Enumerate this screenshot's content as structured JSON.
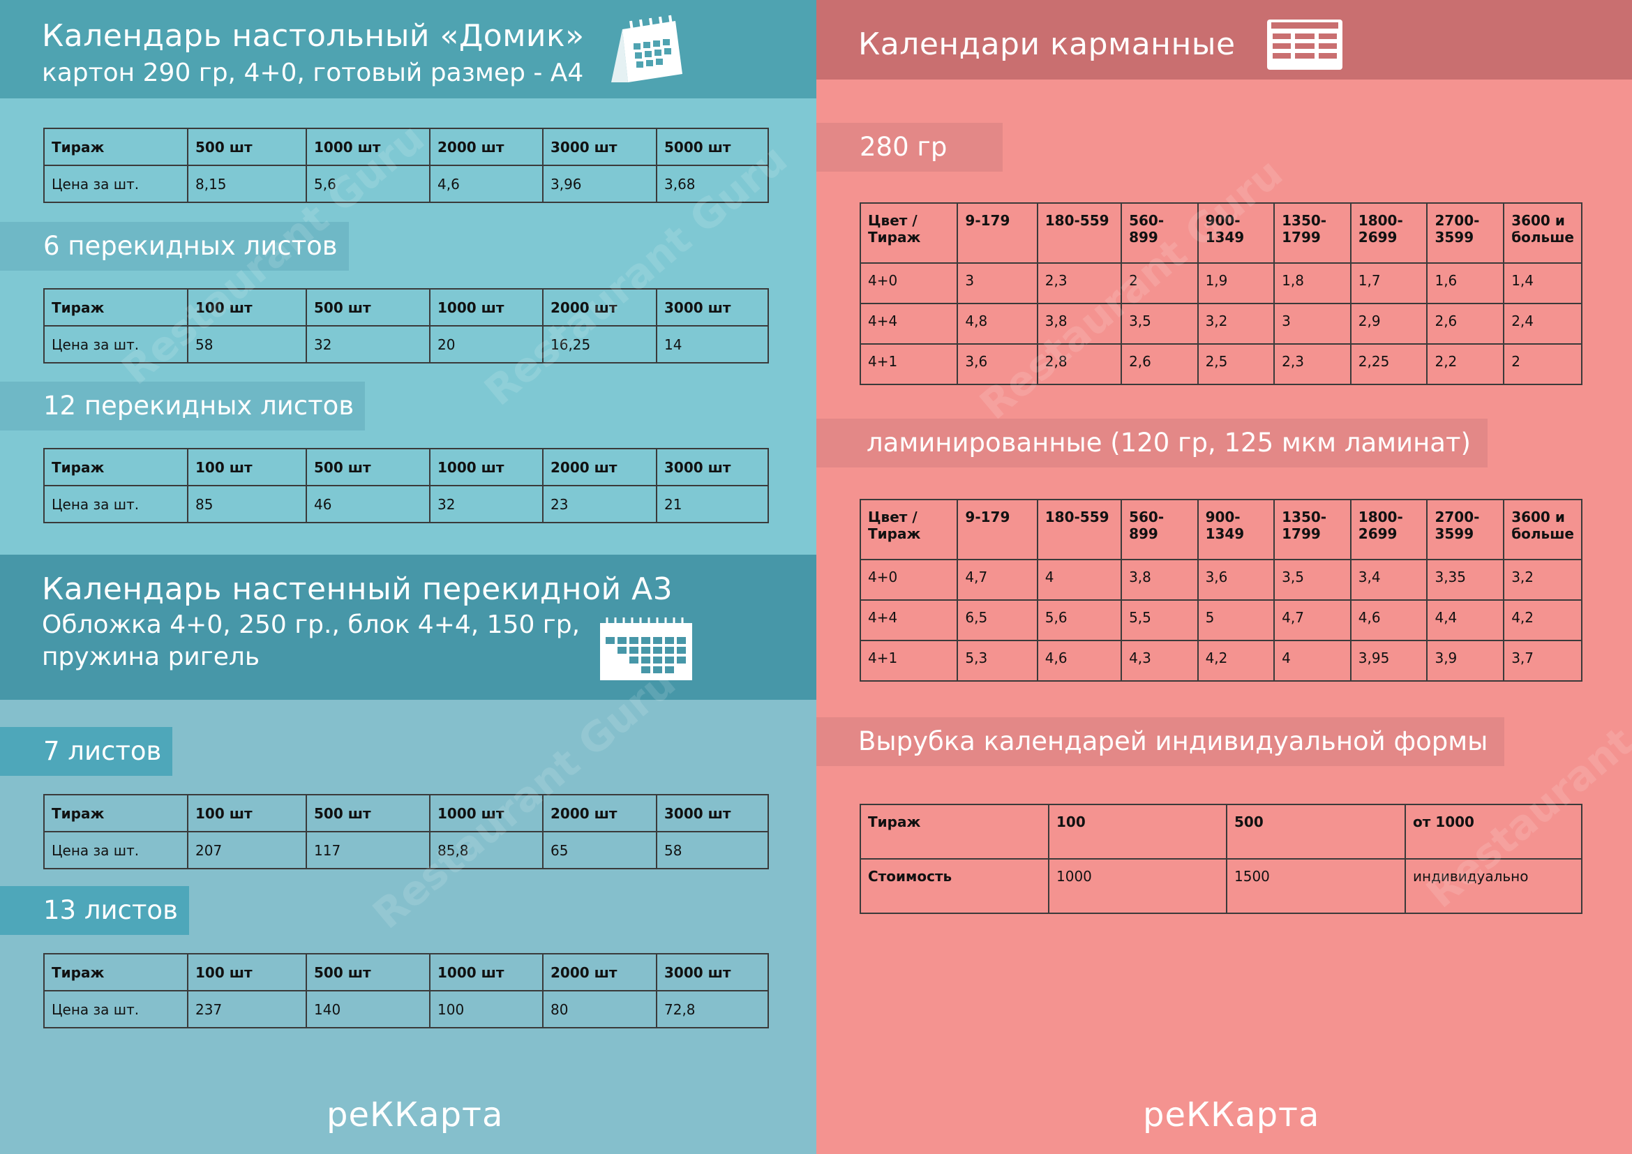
{
  "left": {
    "header": {
      "title": "Календарь настольный «Домик»",
      "subtitle": "картон 290 гр, 4+0, готовый размер - А4",
      "icon": "desk-calendar-icon"
    },
    "table_a": {
      "head": [
        "Тираж",
        "500 шт",
        "1000 шт",
        "2000 шт",
        "3000 шт",
        "5000 шт"
      ],
      "row": [
        "Цена за шт.",
        "8,15",
        "5,6",
        "4,6",
        "3,96",
        "3,68"
      ]
    },
    "sec_6": {
      "label": "6 перекидных листов",
      "head": [
        "Тираж",
        "100 шт",
        "500 шт",
        "1000 шт",
        "2000 шт",
        "3000 шт"
      ],
      "row": [
        "Цена за шт.",
        "58",
        "32",
        "20",
        "16,25",
        "14"
      ]
    },
    "sec_12": {
      "label": "12 перекидных листов",
      "head": [
        "Тираж",
        "100 шт",
        "500 шт",
        "1000 шт",
        "2000 шт",
        "3000 шт"
      ],
      "row": [
        "Цена за шт.",
        "85",
        "46",
        "32",
        "23",
        "21"
      ]
    },
    "wall": {
      "title": "Календарь настенный перекидной А3",
      "line1": "Обложка 4+0, 250 гр., блок 4+4, 150 гр,",
      "line2": "пружина ригель",
      "icon": "wall-calendar-icon"
    },
    "sec_7": {
      "label": "7 листов",
      "head": [
        "Тираж",
        "100 шт",
        "500 шт",
        "1000 шт",
        "2000 шт",
        "3000 шт"
      ],
      "row": [
        "Цена за шт.",
        "207",
        "117",
        "85,8",
        "65",
        "58"
      ]
    },
    "sec_13": {
      "label": "13 листов",
      "head": [
        "Тираж",
        "100 шт",
        "500 шт",
        "1000 шт",
        "2000 шт",
        "3000 шт"
      ],
      "row": [
        "Цена за шт.",
        "237",
        "140",
        "100",
        "80",
        "72,8"
      ]
    },
    "footer": "реККарта"
  },
  "right": {
    "header": {
      "title": "Календари карманные",
      "icon": "table-icon"
    },
    "sec_280": {
      "label": "280 гр",
      "head": [
        "Цвет / Тираж",
        "9-179",
        "180-559",
        "560-899",
        "900-1349",
        "1350-1799",
        "1800-2699",
        "2700-3599",
        "3600 и больше"
      ],
      "rows": [
        [
          "4+0",
          "3",
          "2,3",
          "2",
          "1,9",
          "1,8",
          "1,7",
          "1,6",
          "1,4"
        ],
        [
          "4+4",
          "4,8",
          "3,8",
          "3,5",
          "3,2",
          "3",
          "2,9",
          "2,6",
          "2,4"
        ],
        [
          "4+1",
          "3,6",
          "2,8",
          "2,6",
          "2,5",
          "2,3",
          "2,25",
          "2,2",
          "2"
        ]
      ]
    },
    "sec_lam": {
      "label": "ламинированные (120 гр, 125 мкм ламинат)",
      "head": [
        "Цвет / Тираж",
        "9-179",
        "180-559",
        "560-899",
        "900-1349",
        "1350-1799",
        "1800-2699",
        "2700-3599",
        "3600 и больше"
      ],
      "rows": [
        [
          "4+0",
          "4,7",
          "4",
          "3,8",
          "3,6",
          "3,5",
          "3,4",
          "3,35",
          "3,2"
        ],
        [
          "4+4",
          "6,5",
          "5,6",
          "5,5",
          "5",
          "4,7",
          "4,6",
          "4,4",
          "4,2"
        ],
        [
          "4+1",
          "5,3",
          "4,6",
          "4,3",
          "4,2",
          "4",
          "3,95",
          "3,9",
          "3,7"
        ]
      ]
    },
    "sec_cut": {
      "label": "Вырубка календарей индивидуальной формы",
      "head": [
        "Тираж",
        "100",
        "500",
        "от 1000"
      ],
      "row": [
        "Стоимость",
        "1000",
        "1500",
        "индивидуально"
      ]
    },
    "footer": "реККарта"
  },
  "watermark": "Restaurant Guru",
  "colors": {
    "left_bg": "#7fc8d3",
    "left_header": "#4fa3b1",
    "right_bg": "#f49390",
    "right_header": "#c96f70"
  }
}
